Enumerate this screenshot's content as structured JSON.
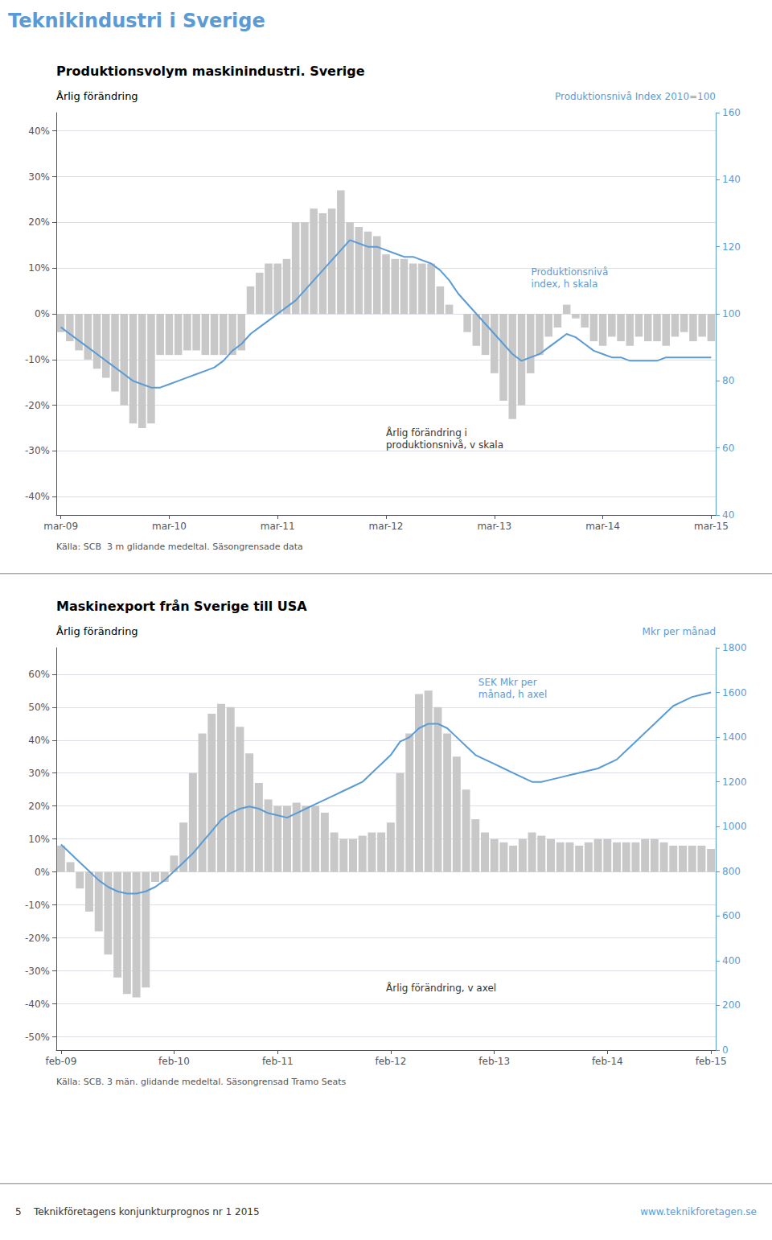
{
  "title": "Teknikindustri i Sverige",
  "annotations": [
    "5    Teknikföretagens konjunkturprognos nr 1 2015",
    "www.teknikforetagen.se"
  ],
  "chart_data": [
    {
      "type": "bar",
      "title": "Produktionsvolym maskinindustri. Sverige",
      "ylabel": "Årlig förändring",
      "y2label": "Produktionsnivå Index 2010=100",
      "annotations": [
        "Produktionsnivå\nindex, h skala",
        "Årlig förändring i\nproduktionsnivå, v skala",
        "Källa: SCB  3 m glidande medeltal. Säsongrensade data"
      ],
      "categories": [
        "mar-09",
        null,
        null,
        null,
        null,
        null,
        null,
        null,
        null,
        null,
        null,
        null,
        "mar-10",
        null,
        null,
        null,
        null,
        null,
        null,
        null,
        null,
        null,
        null,
        null,
        "mar-11",
        null,
        null,
        null,
        null,
        null,
        null,
        null,
        null,
        null,
        null,
        null,
        "mar-12",
        null,
        null,
        null,
        null,
        null,
        null,
        null,
        null,
        null,
        null,
        null,
        "mar-13",
        null,
        null,
        null,
        null,
        null,
        null,
        null,
        null,
        null,
        null,
        null,
        "mar-14",
        null,
        null,
        null,
        null,
        null,
        null,
        null,
        null,
        null,
        null,
        null,
        "mar-15"
      ],
      "series": [
        {
          "type": "bar",
          "color": "#c8c8c8",
          "values": [
            -0.04,
            -0.06,
            -0.08,
            -0.1,
            -0.12,
            -0.14,
            -0.17,
            -0.2,
            -0.24,
            -0.25,
            -0.24,
            -0.09,
            -0.09,
            -0.09,
            -0.08,
            -0.08,
            -0.09,
            -0.09,
            -0.09,
            -0.09,
            -0.08,
            0.06,
            0.09,
            0.11,
            0.11,
            0.12,
            0.2,
            0.2,
            0.23,
            0.22,
            0.23,
            0.27,
            0.2,
            0.19,
            0.18,
            0.17,
            0.13,
            0.12,
            0.12,
            0.11,
            0.11,
            0.11,
            0.06,
            0.02,
            0.0,
            -0.04,
            -0.07,
            -0.09,
            -0.13,
            -0.19,
            -0.23,
            -0.2,
            -0.13,
            -0.09,
            -0.05,
            -0.03,
            0.02,
            -0.01,
            -0.03,
            -0.06,
            -0.07,
            -0.05,
            -0.06,
            -0.07,
            -0.05,
            -0.06,
            -0.06,
            -0.07,
            -0.05,
            -0.04,
            -0.06,
            -0.05,
            -0.06
          ]
        },
        {
          "type": "line",
          "color": "#5b9bd5",
          "axis": "y2",
          "values": [
            96,
            94,
            92,
            90,
            88,
            86,
            84,
            82,
            80,
            79,
            78,
            78,
            79,
            80,
            81,
            82,
            83,
            84,
            86,
            89,
            91,
            94,
            96,
            98,
            100,
            102,
            104,
            107,
            110,
            113,
            116,
            119,
            122,
            121,
            120,
            120,
            119,
            118,
            117,
            117,
            116,
            115,
            113,
            110,
            106,
            103,
            100,
            97,
            94,
            91,
            88,
            86,
            87,
            88,
            90,
            92,
            94,
            93,
            91,
            89,
            88,
            87,
            87,
            86,
            86,
            86,
            86,
            87,
            87,
            87,
            87,
            87,
            87
          ]
        }
      ],
      "ylim": [
        -0.44,
        0.44
      ],
      "yticks": [
        {
          "value": -0.4,
          "label": "-40%"
        },
        {
          "value": -0.3,
          "label": "-30%"
        },
        {
          "value": -0.2,
          "label": "-20%"
        },
        {
          "value": -0.1,
          "label": "-10%"
        },
        {
          "value": 0.0,
          "label": "0%"
        },
        {
          "value": 0.1,
          "label": "10%"
        },
        {
          "value": 0.2,
          "label": "20%"
        },
        {
          "value": 0.3,
          "label": "30%"
        },
        {
          "value": 0.4,
          "label": "40%"
        }
      ],
      "y2lim": [
        40,
        160
      ],
      "y2ticks": [
        40,
        60,
        80,
        100,
        120,
        140,
        160
      ],
      "grid": true
    },
    {
      "type": "bar",
      "title": "Maskinexport från Sverige till USA",
      "ylabel": "Årlig förändring",
      "y2label": "Mkr per månad",
      "annotations": [
        "SEK Mkr per\nmånad, h axel",
        "Årlig förändring, v axel",
        "Källa: SCB. 3 män. glidande medeltal. Säsongrensad Tramo Seats"
      ],
      "categories": [
        "feb-09",
        null,
        null,
        null,
        null,
        null,
        null,
        null,
        null,
        null,
        null,
        null,
        "feb-10",
        null,
        null,
        null,
        null,
        null,
        null,
        null,
        null,
        null,
        null,
        "feb-11",
        null,
        null,
        null,
        null,
        null,
        null,
        null,
        null,
        null,
        null,
        null,
        "feb-12",
        null,
        null,
        null,
        null,
        null,
        null,
        null,
        null,
        null,
        null,
        "feb-13",
        null,
        null,
        null,
        null,
        null,
        null,
        null,
        null,
        null,
        null,
        null,
        "feb-14",
        null,
        null,
        null,
        null,
        null,
        null,
        null,
        null,
        null,
        null,
        "feb-15"
      ],
      "series": [
        {
          "type": "bar",
          "color": "#c8c8c8",
          "values": [
            0.08,
            0.03,
            -0.05,
            -0.12,
            -0.18,
            -0.25,
            -0.32,
            -0.37,
            -0.38,
            -0.35,
            -0.03,
            -0.03,
            0.05,
            0.15,
            0.3,
            0.42,
            0.48,
            0.51,
            0.5,
            0.44,
            0.36,
            0.27,
            0.22,
            0.2,
            0.2,
            0.21,
            0.2,
            0.2,
            0.18,
            0.12,
            0.1,
            0.1,
            0.11,
            0.12,
            0.12,
            0.15,
            0.3,
            0.42,
            0.54,
            0.55,
            0.5,
            0.42,
            0.35,
            0.25,
            0.16,
            0.12,
            0.1,
            0.09,
            0.08,
            0.1,
            0.12,
            0.11,
            0.1,
            0.09,
            0.09,
            0.08,
            0.09,
            0.1,
            0.1,
            0.09,
            0.09,
            0.09,
            0.1,
            0.1,
            0.09,
            0.08,
            0.08,
            0.08,
            0.08,
            0.07
          ]
        },
        {
          "type": "line",
          "color": "#5b9bd5",
          "axis": "y2",
          "values": [
            920,
            880,
            840,
            800,
            760,
            730,
            710,
            700,
            700,
            710,
            730,
            760,
            800,
            840,
            880,
            930,
            980,
            1030,
            1060,
            1080,
            1090,
            1080,
            1060,
            1050,
            1040,
            1060,
            1080,
            1100,
            1120,
            1140,
            1160,
            1180,
            1200,
            1240,
            1280,
            1320,
            1380,
            1400,
            1440,
            1460,
            1460,
            1440,
            1400,
            1360,
            1320,
            1300,
            1280,
            1260,
            1240,
            1220,
            1200,
            1200,
            1210,
            1220,
            1230,
            1240,
            1250,
            1260,
            1280,
            1300,
            1340,
            1380,
            1420,
            1460,
            1500,
            1540,
            1560,
            1580,
            1590,
            1600
          ]
        }
      ],
      "ylim": [
        -0.54,
        0.68
      ],
      "yticks": [
        {
          "value": -0.5,
          "label": "-50%"
        },
        {
          "value": -0.4,
          "label": "-40%"
        },
        {
          "value": -0.3,
          "label": "-30%"
        },
        {
          "value": -0.2,
          "label": "-20%"
        },
        {
          "value": -0.1,
          "label": "-10%"
        },
        {
          "value": 0.0,
          "label": "0%"
        },
        {
          "value": 0.1,
          "label": "10%"
        },
        {
          "value": 0.2,
          "label": "20%"
        },
        {
          "value": 0.3,
          "label": "30%"
        },
        {
          "value": 0.4,
          "label": "40%"
        },
        {
          "value": 0.5,
          "label": "50%"
        },
        {
          "value": 0.6,
          "label": "60%"
        }
      ],
      "y2lim": [
        0,
        1800
      ],
      "y2ticks": [
        0,
        200,
        400,
        600,
        800,
        1000,
        1200,
        1400,
        1600,
        1800
      ],
      "grid": true
    }
  ]
}
